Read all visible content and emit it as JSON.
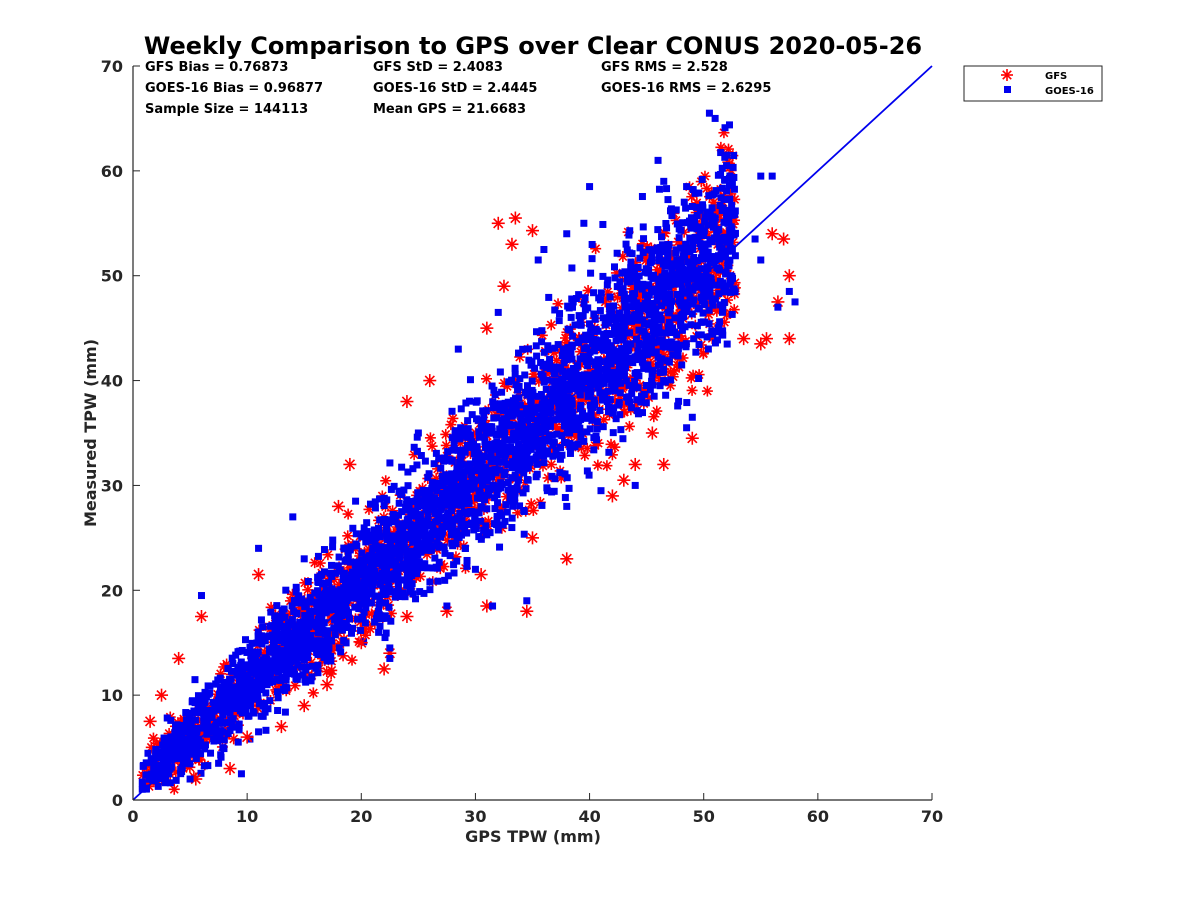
{
  "chart_data": {
    "type": "scatter",
    "title": "Weekly Comparison to GPS over Clear CONUS 2020-05-26",
    "xlabel": "GPS TPW (mm)",
    "ylabel": "Measured TPW (mm)",
    "xlim": [
      0,
      70
    ],
    "ylim": [
      0,
      70
    ],
    "xticks": [
      "0",
      "10",
      "20",
      "30",
      "40",
      "50",
      "60",
      "70"
    ],
    "yticks": [
      "0",
      "10",
      "20",
      "30",
      "40",
      "50",
      "60",
      "70"
    ],
    "grid": false,
    "legend_position": "outside-top-right",
    "reference_line": {
      "x": [
        0,
        70
      ],
      "y": [
        0,
        70
      ],
      "color": "#0000ee"
    },
    "stats": {
      "gfs_bias": "GFS Bias = 0.76873",
      "goes_bias": "GOES-16 Bias = 0.96877",
      "sample_size": "Sample Size = 144113",
      "gfs_std": "GFS StD = 2.4083",
      "goes_std": "GOES-16 StD = 2.4445",
      "mean_gps": "Mean GPS = 21.6683",
      "gfs_rms": "GFS RMS = 2.528",
      "goes_rms": "GOES-16 RMS = 2.6295"
    },
    "series": [
      {
        "name": "GFS",
        "marker": "asterisk",
        "color": "#ff0000",
        "bias": 0.76873,
        "std": 2.4083,
        "rms": 2.528,
        "outliers": [
          [
            33.5,
            55.5
          ],
          [
            32.0,
            55.0
          ],
          [
            35.0,
            54.3
          ],
          [
            33.2,
            53.0
          ],
          [
            32.5,
            49.0
          ],
          [
            31.0,
            45.0
          ],
          [
            24.0,
            38.0
          ],
          [
            26.0,
            40.0
          ],
          [
            19.0,
            32.0
          ],
          [
            18.0,
            28.0
          ],
          [
            11.0,
            21.5
          ],
          [
            6.0,
            17.5
          ],
          [
            4.0,
            13.5
          ],
          [
            2.5,
            10.0
          ],
          [
            1.5,
            7.5
          ],
          [
            56.0,
            54.0
          ],
          [
            57.0,
            53.5
          ],
          [
            57.5,
            50.0
          ],
          [
            57.5,
            44.0
          ],
          [
            55.5,
            44.0
          ],
          [
            55.0,
            43.5
          ],
          [
            56.5,
            47.5
          ],
          [
            53.5,
            44.0
          ],
          [
            49.0,
            34.5
          ],
          [
            46.5,
            32.0
          ],
          [
            45.5,
            35.0
          ],
          [
            43.0,
            30.5
          ],
          [
            42.0,
            29.0
          ],
          [
            38.0,
            23.0
          ],
          [
            34.5,
            18.0
          ],
          [
            31.0,
            18.5
          ],
          [
            35.0,
            25.0
          ],
          [
            30.5,
            21.5
          ],
          [
            22.5,
            14.0
          ],
          [
            22.0,
            12.5
          ],
          [
            20.0,
            15.0
          ],
          [
            15.0,
            9.0
          ],
          [
            10.0,
            6.0
          ],
          [
            8.5,
            3.0
          ],
          [
            5.5,
            2.0
          ],
          [
            13.0,
            7.0
          ],
          [
            17.0,
            11.0
          ],
          [
            24.0,
            17.5
          ],
          [
            27.5,
            18.0
          ],
          [
            44.0,
            32.0
          ]
        ]
      },
      {
        "name": "GOES-16",
        "marker": "square",
        "color": "#0000ee",
        "bias": 0.96877,
        "std": 2.4445,
        "rms": 2.6295,
        "outliers": [
          [
            50.5,
            65.5
          ],
          [
            51.0,
            65.0
          ],
          [
            52.0,
            61.5
          ],
          [
            52.0,
            60.5
          ],
          [
            46.0,
            61.0
          ],
          [
            46.5,
            59.0
          ],
          [
            48.5,
            58.5
          ],
          [
            55.0,
            59.5
          ],
          [
            56.0,
            59.5
          ],
          [
            40.0,
            58.5
          ],
          [
            39.5,
            55.0
          ],
          [
            38.0,
            54.0
          ],
          [
            36.0,
            52.5
          ],
          [
            35.5,
            51.5
          ],
          [
            32.0,
            46.5
          ],
          [
            28.5,
            43.0
          ],
          [
            25.0,
            35.0
          ],
          [
            19.5,
            28.5
          ],
          [
            14.0,
            27.0
          ],
          [
            11.0,
            24.0
          ],
          [
            6.0,
            19.5
          ],
          [
            49.0,
            36.5
          ],
          [
            48.5,
            35.5
          ],
          [
            44.0,
            30.0
          ],
          [
            41.0,
            29.5
          ],
          [
            34.5,
            19.0
          ],
          [
            31.5,
            18.5
          ],
          [
            27.5,
            18.5
          ],
          [
            22.5,
            14.5
          ],
          [
            22.5,
            13.5
          ],
          [
            11.0,
            6.5
          ],
          [
            7.5,
            3.5
          ],
          [
            9.5,
            2.5
          ],
          [
            5.0,
            2.0
          ],
          [
            57.5,
            48.5
          ],
          [
            56.5,
            47.0
          ],
          [
            58.0,
            47.5
          ],
          [
            55.0,
            51.5
          ],
          [
            54.5,
            53.5
          ],
          [
            42.0,
            37.0
          ],
          [
            38.0,
            28.0
          ],
          [
            30.0,
            22.0
          ],
          [
            15.0,
            23.0
          ]
        ]
      }
    ]
  }
}
